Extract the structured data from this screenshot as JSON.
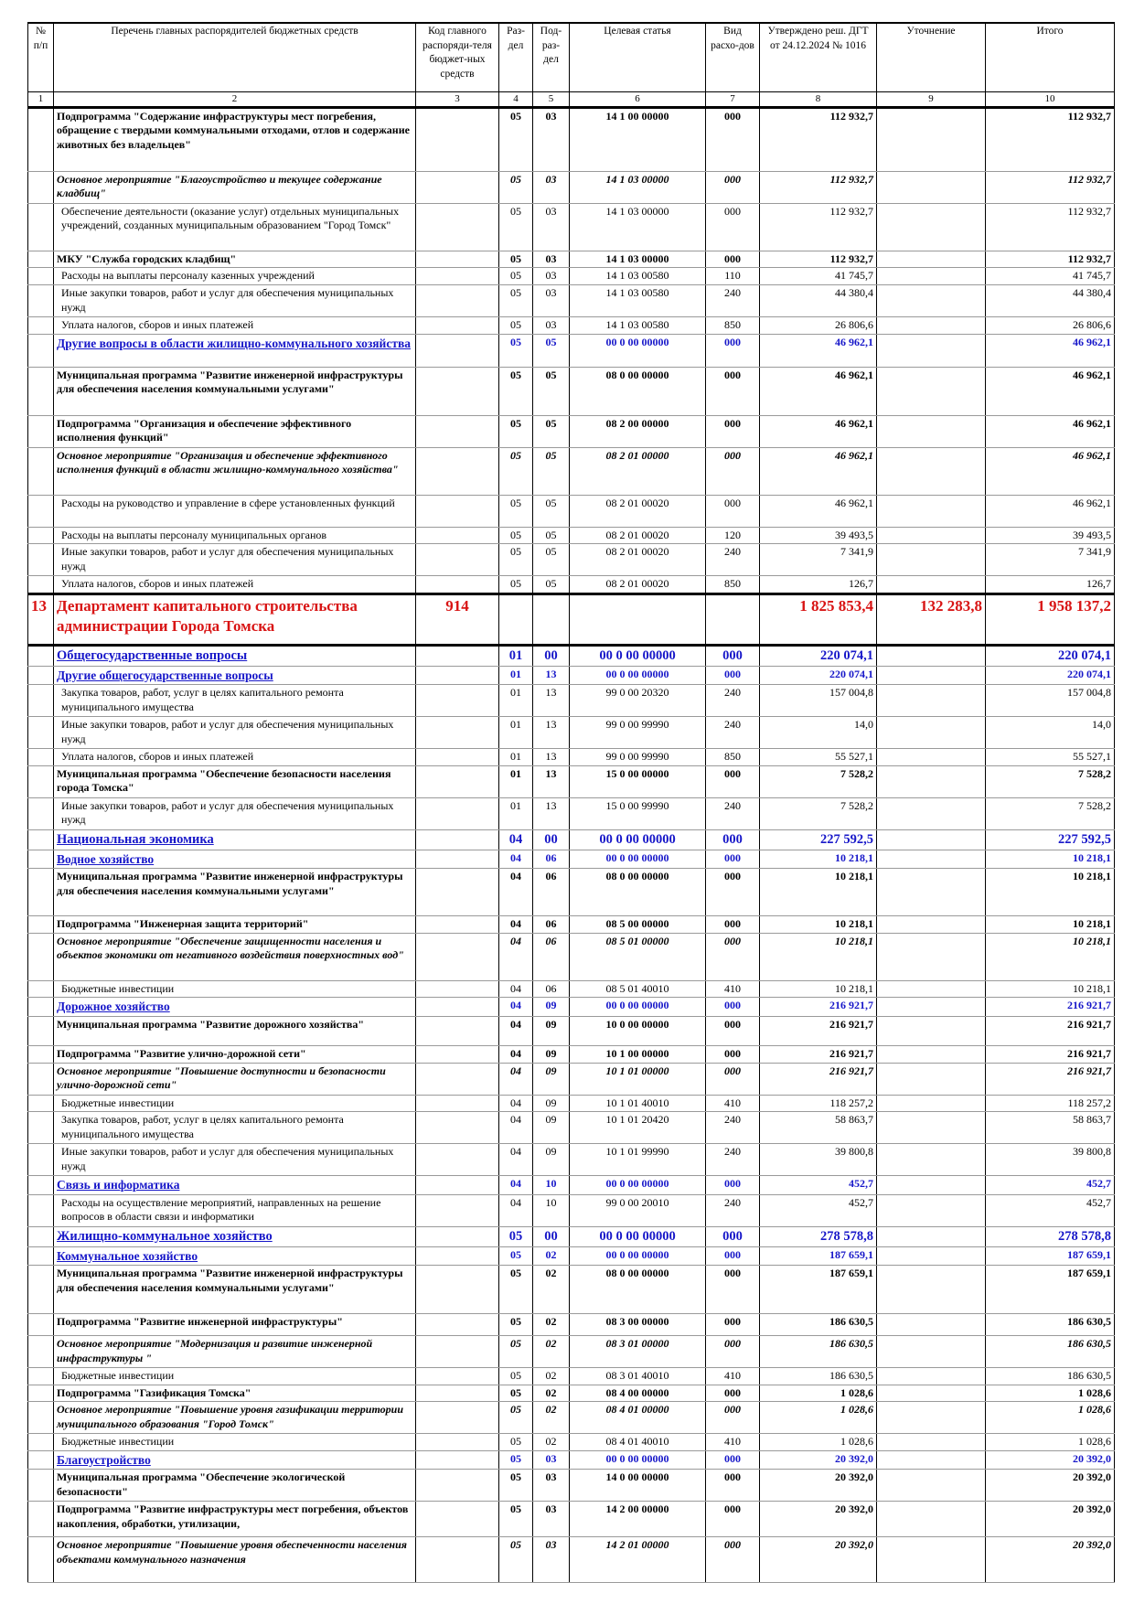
{
  "table": {
    "headers": [
      "№ п/п",
      "Перечень главных распорядителей бюджетных средств",
      "Код главного распоряди-теля бюджет-ных средств",
      "Раз-дел",
      "Под-раз-дел",
      "Целевая статья",
      "Вид расхо-дов",
      "Утверждено реш. ДГТ от 24.12.2024 № 1016",
      "Уточнение",
      "Итого"
    ],
    "column_numbers": [
      "1",
      "2",
      "3",
      "4",
      "5",
      "6",
      "7",
      "8",
      "9",
      "10"
    ],
    "rows": [
      {
        "style": "bold",
        "h": 70,
        "cells": [
          "",
          "Подпрограмма \"Содержание инфраструктуры мест погребения, обращение с твердыми коммунальными отходами, отлов и содержание животных без владельцев\"",
          "",
          "05",
          "03",
          "14 1 00 00000",
          "000",
          "112 932,7",
          "",
          "112 932,7"
        ]
      },
      {
        "style": "bolditalic",
        "h": 35,
        "cells": [
          "",
          "Основное мероприятие \"Благоустройство и текущее содержание кладбищ\"",
          "",
          "05",
          "03",
          "14 1 03 00000",
          "000",
          "112 932,7",
          "",
          "112 932,7"
        ]
      },
      {
        "style": "plain",
        "h": 52,
        "cells": [
          "",
          "Обеспечение деятельности (оказание услуг) отдельных муниципальных учреждений, созданных муниципальным образованием \"Город Томск\"",
          "",
          "05",
          "03",
          "14 1 03 00000",
          "000",
          "112 932,7",
          "",
          "112 932,7"
        ]
      },
      {
        "style": "bold",
        "h": 17,
        "cells": [
          "",
          "МКУ \"Служба городских кладбищ\"",
          "",
          "05",
          "03",
          "14 1 03 00000",
          "000",
          "112 932,7",
          "",
          "112 932,7"
        ]
      },
      {
        "style": "plain",
        "h": 17,
        "cells": [
          "",
          "Расходы на выплаты персоналу казенных учреждений",
          "",
          "05",
          "03",
          "14 1 03 00580",
          "110",
          "41 745,7",
          "",
          "41 745,7"
        ]
      },
      {
        "style": "plain",
        "h": 35,
        "cells": [
          "",
          "Иные закупки товаров, работ и услуг для обеспечения муниципальных нужд",
          "",
          "05",
          "03",
          "14 1 03 00580",
          "240",
          "44 380,4",
          "",
          "44 380,4"
        ]
      },
      {
        "style": "plain",
        "h": 17,
        "cells": [
          "",
          "Уплата налогов, сборов и иных платежей",
          "",
          "05",
          "03",
          "14 1 03 00580",
          "850",
          "26 806,6",
          "",
          "26 806,6"
        ]
      },
      {
        "style": "blue",
        "h": 36,
        "cells": [
          "",
          "Другие вопросы в области жилищно-коммунального хозяйства",
          "",
          "05",
          "05",
          "00 0 00 00000",
          "000",
          "46 962,1",
          "",
          "46 962,1"
        ]
      },
      {
        "style": "bold",
        "h": 53,
        "cells": [
          "",
          "Муниципальная программа \"Развитие инженерной инфраструктуры для обеспечения населения коммунальными услугами\"",
          "",
          "05",
          "05",
          "08 0 00 00000",
          "000",
          "46 962,1",
          "",
          "46 962,1"
        ]
      },
      {
        "style": "bold",
        "h": 35,
        "cells": [
          "",
          "Подпрограмма \"Организация и обеспечение эффективного исполнения функций\"",
          "",
          "05",
          "05",
          "08 2 00 00000",
          "000",
          "46 962,1",
          "",
          "46 962,1"
        ]
      },
      {
        "style": "bolditalic",
        "h": 52,
        "cells": [
          "",
          "Основное мероприятие \"Организация и обеспечение эффективного исполнения функций в области жилищно-коммунального хозяйства\"",
          "",
          "05",
          "05",
          "08 2 01 00000",
          "000",
          "46 962,1",
          "",
          "46 962,1"
        ]
      },
      {
        "style": "plain",
        "h": 35,
        "cells": [
          "",
          "Расходы на руководство и управление в сфере установленных функций",
          "",
          "05",
          "05",
          "08 2 01 00020",
          "000",
          "46 962,1",
          "",
          "46 962,1"
        ]
      },
      {
        "style": "plain",
        "h": 17,
        "cells": [
          "",
          "Расходы на выплаты персоналу муниципальных органов",
          "",
          "05",
          "05",
          "08 2 01 00020",
          "120",
          "39 493,5",
          "",
          "39 493,5"
        ]
      },
      {
        "style": "plain",
        "h": 35,
        "cells": [
          "",
          "Иные закупки товаров, работ и услуг для обеспечения муниципальных нужд",
          "",
          "05",
          "05",
          "08 2 01 00020",
          "240",
          "7 341,9",
          "",
          "7 341,9"
        ]
      },
      {
        "style": "plain",
        "h": 17,
        "cells": [
          "",
          "Уплата налогов, сборов и иных платежей",
          "",
          "05",
          "05",
          "08 2 01 00020",
          "850",
          "126,7",
          "",
          "126,7"
        ]
      },
      {
        "style": "dept",
        "h": 56,
        "cells": [
          "13",
          "Департамент капитального строительства администрации Города Томска",
          "914",
          "",
          "",
          "",
          "",
          "1 825 853,4",
          "132 283,8",
          "1 958 137,2"
        ]
      },
      {
        "style": "blue2",
        "h": 20,
        "cells": [
          "",
          "Общегосударственные вопросы",
          "",
          "01",
          "00",
          "00 0 00 00000",
          "000",
          "220 074,1",
          "",
          "220 074,1"
        ]
      },
      {
        "style": "blue",
        "h": 17,
        "cells": [
          "",
          "Другие общегосударственные вопросы",
          "",
          "01",
          "13",
          "00 0 00 00000",
          "000",
          "220 074,1",
          "",
          "220 074,1"
        ]
      },
      {
        "style": "plain",
        "h": 35,
        "cells": [
          "",
          "Закупка товаров, работ, услуг в целях капитального ремонта муниципального имущества",
          "",
          "01",
          "13",
          "99 0 00 20320",
          "240",
          "157 004,8",
          "",
          "157 004,8"
        ]
      },
      {
        "style": "plain",
        "h": 35,
        "cells": [
          "",
          "Иные закупки товаров, работ и услуг для обеспечения муниципальных нужд",
          "",
          "01",
          "13",
          "99 0 00 99990",
          "240",
          "14,0",
          "",
          "14,0"
        ]
      },
      {
        "style": "plain",
        "h": 17,
        "cells": [
          "",
          "Уплата налогов, сборов и иных платежей",
          "",
          "01",
          "13",
          "99 0 00 99990",
          "850",
          "55 527,1",
          "",
          "55 527,1"
        ]
      },
      {
        "style": "bold",
        "h": 35,
        "cells": [
          "",
          "Муниципальная программа \"Обеспечение безопасности населения города Томска\"",
          "",
          "01",
          "13",
          "15 0 00 00000",
          "000",
          "7 528,2",
          "",
          "7 528,2"
        ]
      },
      {
        "style": "plain",
        "h": 35,
        "cells": [
          "",
          "Иные закупки товаров, работ и услуг для обеспечения муниципальных нужд",
          "",
          "01",
          "13",
          "15 0 00 99990",
          "240",
          "7 528,2",
          "",
          "7 528,2"
        ]
      },
      {
        "style": "blue2",
        "h": 20,
        "cells": [
          "",
          "Национальная экономика",
          "",
          "04",
          "00",
          "00 0 00 00000",
          "000",
          "227 592,5",
          "",
          "227 592,5"
        ]
      },
      {
        "style": "blue",
        "h": 17,
        "cells": [
          "",
          "Водное хозяйство",
          "",
          "04",
          "06",
          "00 0 00 00000",
          "000",
          "10 218,1",
          "",
          "10 218,1"
        ]
      },
      {
        "style": "bold",
        "h": 52,
        "cells": [
          "",
          "Муниципальная программа \"Развитие инженерной инфраструктуры для обеспечения населения коммунальными услугами\"",
          "",
          "04",
          "06",
          "08 0 00 00000",
          "000",
          "10 218,1",
          "",
          "10 218,1"
        ]
      },
      {
        "style": "bold",
        "h": 17,
        "cells": [
          "",
          "Подпрограмма \"Инженерная защита территорий\"",
          "",
          "04",
          "06",
          "08 5 00 00000",
          "000",
          "10 218,1",
          "",
          "10 218,1"
        ]
      },
      {
        "style": "bolditalic",
        "h": 52,
        "cells": [
          "",
          "Основное мероприятие \"Обеспечение защищенности населения и объектов экономики от негативного воздействия поверхностных вод\"",
          "",
          "04",
          "06",
          "08 5 01 00000",
          "000",
          "10 218,1",
          "",
          "10 218,1"
        ]
      },
      {
        "style": "plain",
        "h": 17,
        "cells": [
          "",
          "Бюджетные инвестиции",
          "",
          "04",
          "06",
          "08 5 01 40010",
          "410",
          "10 218,1",
          "",
          "10 218,1"
        ]
      },
      {
        "style": "blue",
        "h": 17,
        "cells": [
          "",
          "Дорожное хозяйство",
          "",
          "04",
          "09",
          "00 0 00 00000",
          "000",
          "216 921,7",
          "",
          "216 921,7"
        ]
      },
      {
        "style": "bold",
        "h": 32,
        "cells": [
          "",
          "Муниципальная программа \"Развитие дорожного хозяйства\"",
          "",
          "04",
          "09",
          "10 0 00 00000",
          "000",
          "216 921,7",
          "",
          "216 921,7"
        ]
      },
      {
        "style": "bold",
        "h": 17,
        "cells": [
          "",
          "Подпрограмма \"Развитие улично-дорожной сети\"",
          "",
          "04",
          "09",
          "10 1 00 00000",
          "000",
          "216 921,7",
          "",
          "216 921,7"
        ]
      },
      {
        "style": "bolditalic",
        "h": 35,
        "cells": [
          "",
          "Основное мероприятие \"Повышение доступности и безопасности улично-дорожной сети\"",
          "",
          "04",
          "09",
          "10 1 01 00000",
          "000",
          "216 921,7",
          "",
          "216 921,7"
        ]
      },
      {
        "style": "plain",
        "h": 17,
        "cells": [
          "",
          "Бюджетные инвестиции",
          "",
          "04",
          "09",
          "10 1 01 40010",
          "410",
          "118 257,2",
          "",
          "118 257,2"
        ]
      },
      {
        "style": "plain",
        "h": 35,
        "cells": [
          "",
          "Закупка товаров, работ, услуг в целях капитального ремонта муниципального имущества",
          "",
          "04",
          "09",
          "10 1 01 20420",
          "240",
          "58 863,7",
          "",
          "58 863,7"
        ]
      },
      {
        "style": "plain",
        "h": 35,
        "cells": [
          "",
          "Иные закупки товаров, работ и услуг для обеспечения муниципальных нужд",
          "",
          "04",
          "09",
          "10 1 01 99990",
          "240",
          "39 800,8",
          "",
          "39 800,8"
        ]
      },
      {
        "style": "blue",
        "h": 17,
        "cells": [
          "",
          "Связь и информатика",
          "",
          "04",
          "10",
          "00 0 00 00000",
          "000",
          "452,7",
          "",
          "452,7"
        ]
      },
      {
        "style": "plain",
        "h": 35,
        "cells": [
          "",
          "Расходы на осуществление мероприятий, направленных на решение вопросов в области связи и информатики",
          "",
          "04",
          "10",
          "99 0 00 20010",
          "240",
          "452,7",
          "",
          "452,7"
        ]
      },
      {
        "style": "blue2",
        "h": 20,
        "cells": [
          "",
          "Жилищно-коммунальное хозяйство",
          "",
          "05",
          "00",
          "00 0 00 00000",
          "000",
          "278 578,8",
          "",
          "278 578,8"
        ]
      },
      {
        "style": "blue",
        "h": 17,
        "cells": [
          "",
          "Коммунальное хозяйство",
          "",
          "05",
          "02",
          "00 0 00 00000",
          "000",
          "187 659,1",
          "",
          "187 659,1"
        ]
      },
      {
        "style": "bold",
        "h": 53,
        "cells": [
          "",
          "Муниципальная программа \"Развитие инженерной инфраструктуры для обеспечения населения коммунальными услугами\"",
          "",
          "05",
          "02",
          "08 0 00 00000",
          "000",
          "187 659,1",
          "",
          "187 659,1"
        ]
      },
      {
        "style": "bold",
        "h": 24,
        "cells": [
          "",
          "Подпрограмма \"Развитие инженерной инфраструктуры\"",
          "",
          "05",
          "02",
          "08 3 00 00000",
          "000",
          "186 630,5",
          "",
          "186 630,5"
        ]
      },
      {
        "style": "bolditalic",
        "h": 35,
        "cells": [
          "",
          "Основное мероприятие \"Модернизация и развитие инженерной инфраструктуры \"",
          "",
          "05",
          "02",
          "08 3 01 00000",
          "000",
          "186 630,5",
          "",
          "186 630,5"
        ]
      },
      {
        "style": "plain",
        "h": 17,
        "cells": [
          "",
          "Бюджетные инвестиции",
          "",
          "05",
          "02",
          "08 3 01 40010",
          "410",
          "186 630,5",
          "",
          "186 630,5"
        ]
      },
      {
        "style": "bold",
        "h": 17,
        "cells": [
          "",
          "Подпрограмма \"Газификация Томска\"",
          "",
          "05",
          "02",
          "08 4 00 00000",
          "000",
          "1 028,6",
          "",
          "1 028,6"
        ]
      },
      {
        "style": "bolditalic",
        "h": 35,
        "cells": [
          "",
          "Основное мероприятие \"Повышение уровня газификации территории муниципального образования \"Город Томск\"",
          "",
          "05",
          "02",
          "08 4 01 00000",
          "000",
          "1 028,6",
          "",
          "1 028,6"
        ]
      },
      {
        "style": "plain",
        "h": 17,
        "cells": [
          "",
          "Бюджетные инвестиции",
          "",
          "05",
          "02",
          "08 4 01 40010",
          "410",
          "1 028,6",
          "",
          "1 028,6"
        ]
      },
      {
        "style": "blue",
        "h": 17,
        "cells": [
          "",
          "Благоустройство",
          "",
          "05",
          "03",
          "00 0 00 00000",
          "000",
          "20 392,0",
          "",
          "20 392,0"
        ]
      },
      {
        "style": "bold",
        "h": 35,
        "cells": [
          "",
          "Муниципальная программа \"Обеспечение экологической безопасности\"",
          "",
          "05",
          "03",
          "14 0 00 00000",
          "000",
          "20 392,0",
          "",
          "20 392,0"
        ]
      },
      {
        "style": "bold",
        "h": 39,
        "cells": [
          "",
          "Подпрограмма  \"Развитие инфраструктуры мест погребения, объектов накопления, обработки, утилизации,",
          "",
          "05",
          "03",
          "14 2 00 00000",
          "000",
          "20 392,0",
          "",
          "20 392,0"
        ]
      },
      {
        "style": "bolditalic",
        "h": 50,
        "cells": [
          "",
          "Основное мероприятие \"Повышение уровня обеспеченности населения объектами коммунального назначения",
          "",
          "05",
          "03",
          "14 2 01 00000",
          "000",
          "20 392,0",
          "",
          "20 392,0"
        ]
      }
    ]
  }
}
